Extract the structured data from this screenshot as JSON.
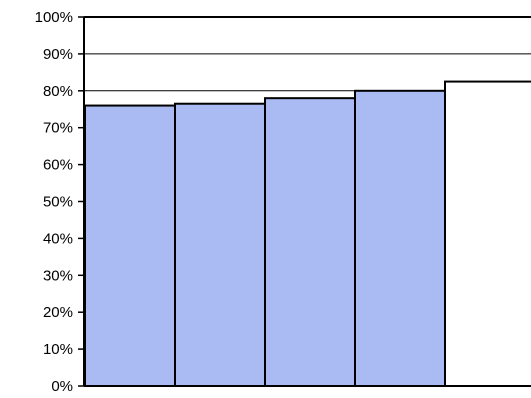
{
  "chart_data": {
    "type": "bar",
    "categories": [
      "",
      "",
      "",
      "",
      ""
    ],
    "values": [
      76,
      76.5,
      78,
      80,
      82.5
    ],
    "bar_colors": [
      "#aabbf3",
      "#aabbf3",
      "#aabbf3",
      "#aabbf3",
      "#ffffff"
    ],
    "title": "",
    "xlabel": "",
    "ylabel": "",
    "ylim": [
      0,
      100
    ],
    "ytick_step": 10,
    "ytick_format": "percent",
    "gridlines": [
      80,
      90
    ],
    "grid": "horizontal",
    "legend": "none",
    "edge_color": "#000000",
    "background": "#ffffff"
  }
}
